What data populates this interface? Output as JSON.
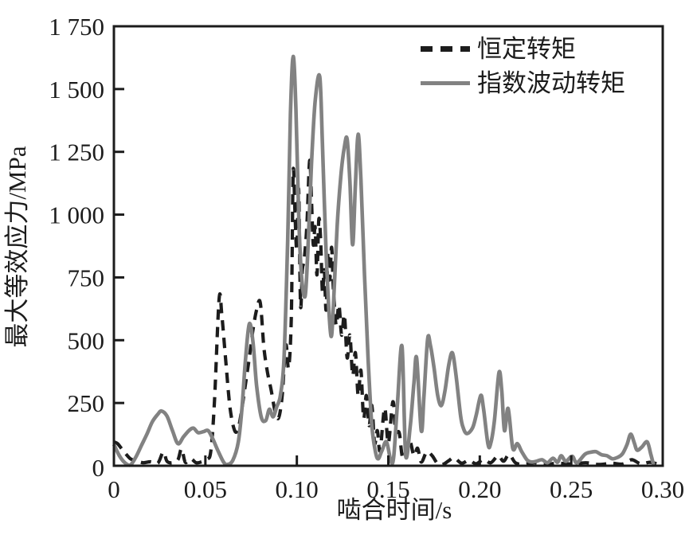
{
  "figure": {
    "background": "#ffffff",
    "axis_color": "#1c1c1c",
    "text_color": "#1c1c1c"
  },
  "chart_data": {
    "type": "line",
    "title": "",
    "xlabel": "啮合时间/s",
    "ylabel": "最大等效应力/MPa",
    "xlim": [
      0,
      0.3
    ],
    "ylim": [
      0,
      1750
    ],
    "grid": false,
    "legend_position": "upper-right-inside",
    "x_ticks": [
      0,
      0.05,
      0.1,
      0.15,
      0.2,
      0.25,
      0.3
    ],
    "x_tick_labels": [
      "0",
      "0.05",
      "0.10",
      "0.15",
      "0.20",
      "0.25",
      "0.30"
    ],
    "y_ticks": [
      0,
      250,
      500,
      750,
      1000,
      1250,
      1500,
      1750
    ],
    "y_tick_labels": [
      "0",
      "250",
      "500",
      "750",
      "1 000",
      "1 250",
      "1 500",
      "1 750"
    ],
    "series": [
      {
        "name": "恒定转矩",
        "style": "dashed",
        "color": "#1c1c1c",
        "points": [
          [
            0,
            95
          ],
          [
            0.002,
            88
          ],
          [
            0.004,
            70
          ],
          [
            0.006,
            52
          ],
          [
            0.009,
            28
          ],
          [
            0.012,
            20
          ],
          [
            0.016,
            12
          ],
          [
            0.02,
            16
          ],
          [
            0.024,
            10
          ],
          [
            0.027,
            55
          ],
          [
            0.029,
            18
          ],
          [
            0.032,
            12
          ],
          [
            0.035,
            24
          ],
          [
            0.037,
            68
          ],
          [
            0.039,
            14
          ],
          [
            0.042,
            28
          ],
          [
            0.045,
            12
          ],
          [
            0.048,
            16
          ],
          [
            0.051,
            26
          ],
          [
            0.053,
            60
          ],
          [
            0.055,
            260
          ],
          [
            0.0575,
            665
          ],
          [
            0.059,
            600
          ],
          [
            0.061,
            430
          ],
          [
            0.0635,
            230
          ],
          [
            0.066,
            140
          ],
          [
            0.068,
            150
          ],
          [
            0.07,
            230
          ],
          [
            0.072,
            330
          ],
          [
            0.074,
            430
          ],
          [
            0.076,
            540
          ],
          [
            0.078,
            620
          ],
          [
            0.08,
            650
          ],
          [
            0.082,
            470
          ],
          [
            0.084,
            370
          ],
          [
            0.086,
            300
          ],
          [
            0.088,
            220
          ],
          [
            0.09,
            190
          ],
          [
            0.092,
            280
          ],
          [
            0.094,
            480
          ],
          [
            0.0955,
            390
          ],
          [
            0.097,
            600
          ],
          [
            0.098,
            1170
          ],
          [
            0.099,
            1000
          ],
          [
            0.1,
            860
          ],
          [
            0.101,
            1100
          ],
          [
            0.102,
            640
          ],
          [
            0.103,
            780
          ],
          [
            0.104,
            820
          ],
          [
            0.1055,
            960
          ],
          [
            0.107,
            1215
          ],
          [
            0.108,
            1060
          ],
          [
            0.109,
            880
          ],
          [
            0.11,
            950
          ],
          [
            0.111,
            760
          ],
          [
            0.112,
            980
          ],
          [
            0.113,
            900
          ],
          [
            0.114,
            690
          ],
          [
            0.115,
            780
          ],
          [
            0.116,
            620
          ],
          [
            0.117,
            850
          ],
          [
            0.118,
            740
          ],
          [
            0.119,
            870
          ],
          [
            0.12,
            700
          ],
          [
            0.1215,
            560
          ],
          [
            0.123,
            640
          ],
          [
            0.1245,
            520
          ],
          [
            0.126,
            600
          ],
          [
            0.1275,
            430
          ],
          [
            0.129,
            520
          ],
          [
            0.1305,
            360
          ],
          [
            0.132,
            450
          ],
          [
            0.1335,
            280
          ],
          [
            0.135,
            380
          ],
          [
            0.1365,
            190
          ],
          [
            0.138,
            280
          ],
          [
            0.1395,
            160
          ],
          [
            0.141,
            240
          ],
          [
            0.1425,
            90
          ],
          [
            0.144,
            140
          ],
          [
            0.1455,
            60
          ],
          [
            0.148,
            230
          ],
          [
            0.15,
            90
          ],
          [
            0.1525,
            255
          ],
          [
            0.154,
            140
          ],
          [
            0.156,
            130
          ],
          [
            0.158,
            30
          ],
          [
            0.1615,
            100
          ],
          [
            0.164,
            40
          ],
          [
            0.166,
            70
          ],
          [
            0.168,
            15
          ],
          [
            0.171,
            55
          ],
          [
            0.174,
            40
          ],
          [
            0.177,
            8
          ],
          [
            0.18,
            6
          ],
          [
            0.183,
            20
          ],
          [
            0.186,
            32
          ],
          [
            0.19,
            10
          ],
          [
            0.194,
            22
          ],
          [
            0.198,
            8
          ],
          [
            0.202,
            25
          ],
          [
            0.206,
            12
          ],
          [
            0.21,
            40
          ],
          [
            0.213,
            18
          ],
          [
            0.216,
            45
          ],
          [
            0.2195,
            12
          ],
          [
            0.224,
            6
          ],
          [
            0.23,
            12
          ],
          [
            0.236,
            5
          ],
          [
            0.242,
            10
          ],
          [
            0.25,
            7
          ],
          [
            0.258,
            12
          ],
          [
            0.265,
            5
          ],
          [
            0.272,
            10
          ],
          [
            0.278,
            7
          ],
          [
            0.283,
            24
          ],
          [
            0.288,
            8
          ],
          [
            0.293,
            14
          ],
          [
            0.298,
            6
          ],
          [
            0.3,
            8
          ]
        ]
      },
      {
        "name": "指数波动转矩",
        "style": "solid",
        "color": "#828282",
        "points": [
          [
            0,
            85
          ],
          [
            0.003,
            40
          ],
          [
            0.006,
            12
          ],
          [
            0.009,
            3
          ],
          [
            0.012,
            35
          ],
          [
            0.015,
            80
          ],
          [
            0.018,
            125
          ],
          [
            0.021,
            175
          ],
          [
            0.024,
            205
          ],
          [
            0.026,
            218
          ],
          [
            0.029,
            198
          ],
          [
            0.032,
            140
          ],
          [
            0.035,
            88
          ],
          [
            0.038,
            115
          ],
          [
            0.041,
            140
          ],
          [
            0.0435,
            150
          ],
          [
            0.046,
            132
          ],
          [
            0.049,
            136
          ],
          [
            0.0515,
            140
          ],
          [
            0.054,
            108
          ],
          [
            0.057,
            58
          ],
          [
            0.06,
            14
          ],
          [
            0.062,
            5
          ],
          [
            0.065,
            22
          ],
          [
            0.068,
            95
          ],
          [
            0.07,
            230
          ],
          [
            0.072,
            430
          ],
          [
            0.074,
            565
          ],
          [
            0.076,
            495
          ],
          [
            0.078,
            320
          ],
          [
            0.0805,
            195
          ],
          [
            0.083,
            180
          ],
          [
            0.085,
            225
          ],
          [
            0.087,
            195
          ],
          [
            0.089,
            235
          ],
          [
            0.091,
            280
          ],
          [
            0.093,
            430
          ],
          [
            0.095,
            900
          ],
          [
            0.0965,
            1400
          ],
          [
            0.098,
            1630
          ],
          [
            0.0995,
            1420
          ],
          [
            0.101,
            1000
          ],
          [
            0.1025,
            760
          ],
          [
            0.1045,
            675
          ],
          [
            0.106,
            850
          ],
          [
            0.108,
            1200
          ],
          [
            0.11,
            1450
          ],
          [
            0.1125,
            1550
          ],
          [
            0.114,
            1280
          ],
          [
            0.116,
            850
          ],
          [
            0.1185,
            523
          ],
          [
            0.12,
            640
          ],
          [
            0.122,
            950
          ],
          [
            0.124,
            1150
          ],
          [
            0.126,
            1270
          ],
          [
            0.1275,
            1300
          ],
          [
            0.129,
            1130
          ],
          [
            0.1305,
            880
          ],
          [
            0.132,
            1120
          ],
          [
            0.1335,
            1320
          ],
          [
            0.135,
            1140
          ],
          [
            0.137,
            760
          ],
          [
            0.139,
            420
          ],
          [
            0.141,
            160
          ],
          [
            0.143,
            55
          ],
          [
            0.1445,
            28
          ],
          [
            0.1465,
            60
          ],
          [
            0.149,
            95
          ],
          [
            0.1515,
            16
          ],
          [
            0.153,
            40
          ],
          [
            0.155,
            250
          ],
          [
            0.1575,
            475
          ],
          [
            0.1595,
            40
          ],
          [
            0.162,
            160
          ],
          [
            0.164,
            330
          ],
          [
            0.1655,
            428
          ],
          [
            0.168,
            140
          ],
          [
            0.1695,
            280
          ],
          [
            0.1715,
            505
          ],
          [
            0.173,
            480
          ],
          [
            0.175,
            390
          ],
          [
            0.177,
            280
          ],
          [
            0.179,
            240
          ],
          [
            0.181,
            300
          ],
          [
            0.183,
            400
          ],
          [
            0.185,
            450
          ],
          [
            0.187,
            360
          ],
          [
            0.1895,
            200
          ],
          [
            0.191,
            150
          ],
          [
            0.193,
            128
          ],
          [
            0.196,
            150
          ],
          [
            0.198,
            200
          ],
          [
            0.2005,
            280
          ],
          [
            0.202,
            230
          ],
          [
            0.2045,
            85
          ],
          [
            0.206,
            90
          ],
          [
            0.208,
            180
          ],
          [
            0.2105,
            371
          ],
          [
            0.212,
            300
          ],
          [
            0.2135,
            140
          ],
          [
            0.2155,
            228
          ],
          [
            0.218,
            70
          ],
          [
            0.2205,
            88
          ],
          [
            0.223,
            55
          ],
          [
            0.226,
            22
          ],
          [
            0.2285,
            15
          ],
          [
            0.231,
            18
          ],
          [
            0.234,
            24
          ],
          [
            0.237,
            12
          ],
          [
            0.24,
            30
          ],
          [
            0.2425,
            14
          ],
          [
            0.2445,
            40
          ],
          [
            0.247,
            18
          ],
          [
            0.2505,
            38
          ],
          [
            0.253,
            12
          ],
          [
            0.2575,
            46
          ],
          [
            0.2605,
            54
          ],
          [
            0.2635,
            56
          ],
          [
            0.2665,
            44
          ],
          [
            0.2695,
            40
          ],
          [
            0.2725,
            28
          ],
          [
            0.2755,
            34
          ],
          [
            0.278,
            48
          ],
          [
            0.2805,
            85
          ],
          [
            0.2825,
            126
          ],
          [
            0.2845,
            90
          ],
          [
            0.286,
            62
          ],
          [
            0.2885,
            74
          ],
          [
            0.2915,
            95
          ],
          [
            0.2935,
            45
          ],
          [
            0.295,
            4
          ]
        ]
      }
    ]
  }
}
